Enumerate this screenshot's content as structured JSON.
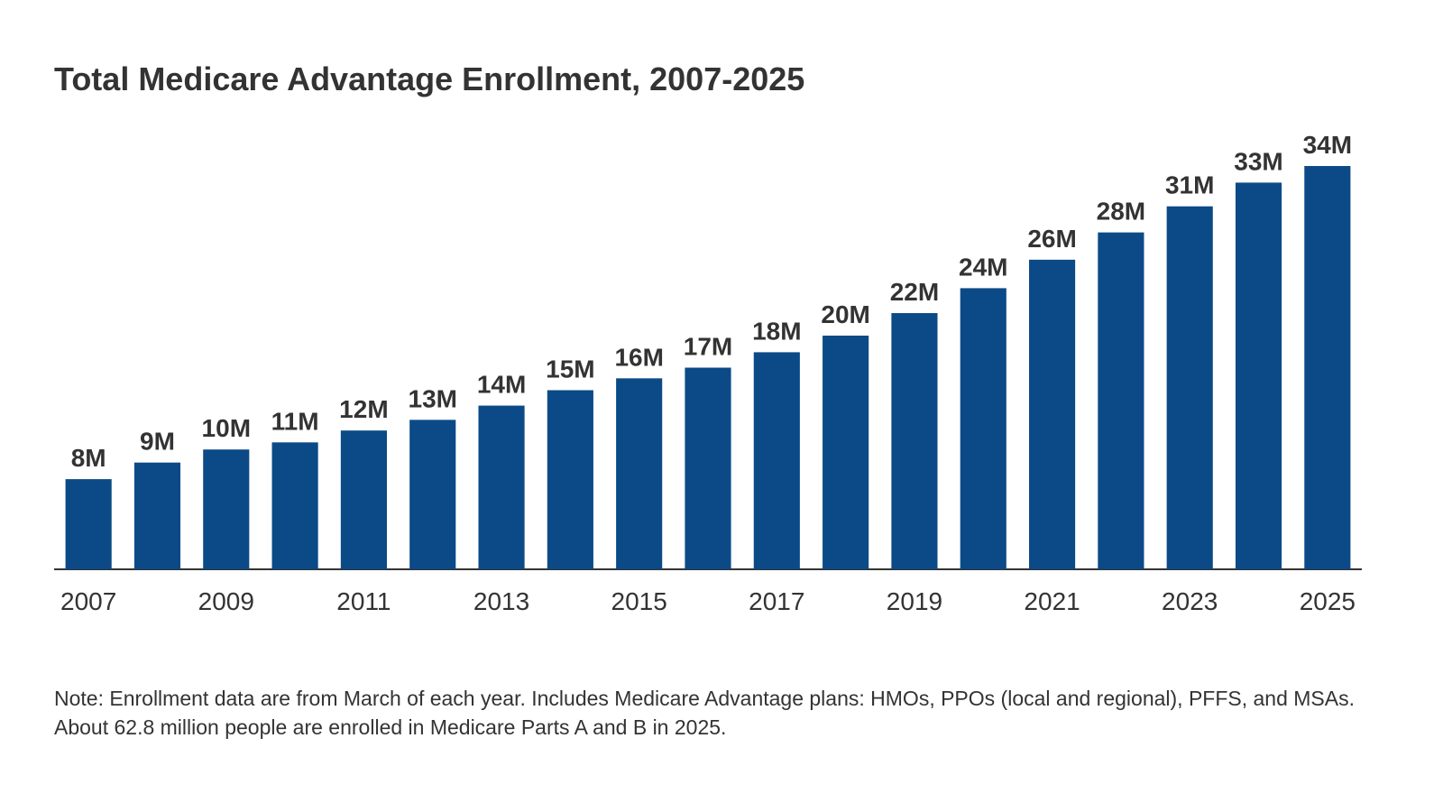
{
  "chart_data": {
    "type": "bar",
    "title": "Total Medicare Advantage Enrollment, 2007-2025",
    "categories": [
      "2007",
      null,
      "2009",
      null,
      "2011",
      null,
      "2013",
      null,
      "2015",
      null,
      "2017",
      null,
      "2019",
      null,
      "2021",
      null,
      "2023",
      null,
      "2025"
    ],
    "values": [
      7.6,
      9.0,
      10.1,
      10.7,
      11.7,
      12.6,
      13.8,
      15.1,
      16.1,
      17.0,
      18.3,
      19.7,
      21.6,
      23.7,
      26.1,
      28.4,
      30.6,
      32.6,
      34.0
    ],
    "value_labels": [
      "8M",
      "9M",
      "10M",
      "11M",
      "12M",
      "13M",
      "14M",
      "15M",
      "16M",
      "17M",
      "18M",
      "20M",
      "22M",
      "24M",
      "26M",
      "28M",
      "31M",
      "33M",
      "34M"
    ],
    "color": "#0b4a87",
    "note": "Note: Enrollment data are from March of each year. Includes Medicare Advantage plans: HMOs, PPOs (local and regional), PFFS, and MSAs. About 62.8 million people are enrolled in Medicare Parts A and B in 2025."
  }
}
